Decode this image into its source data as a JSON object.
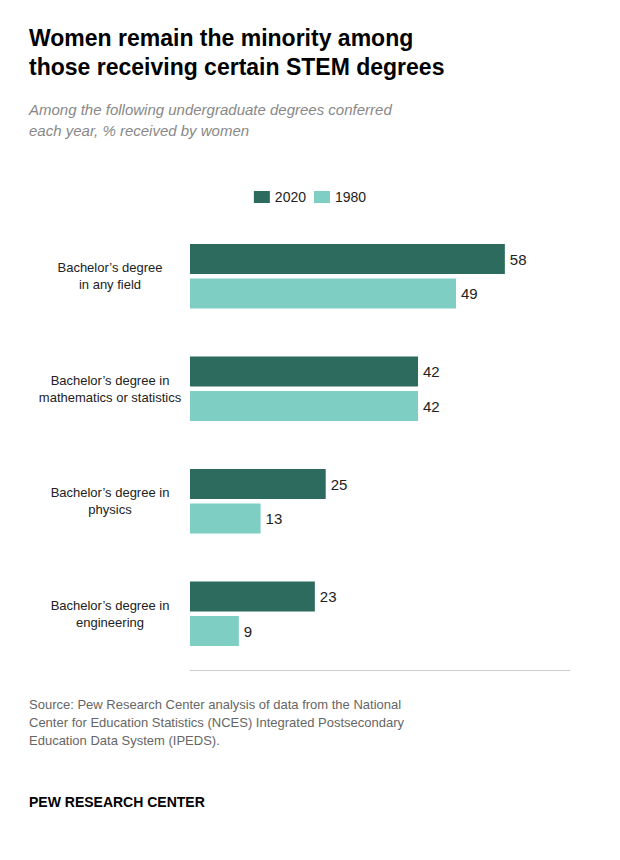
{
  "chart_data": {
    "type": "bar",
    "orientation": "horizontal",
    "title": "Women remain the minority among\nthose receiving certain STEM degrees",
    "subtitle": "Among the following undergraduate degrees conferred\neach year, % received by women",
    "categories": [
      "Bachelor’s degree\nin any field",
      "Bachelor’s degree in\nmathematics or statistics",
      "Bachelor’s degree in\nphysics",
      "Bachelor’s degree in\nengineering"
    ],
    "series": [
      {
        "name": "2020",
        "color": "#2d6b5e",
        "values": [
          58,
          42,
          25,
          23
        ]
      },
      {
        "name": "1980",
        "color": "#7ecec4",
        "values": [
          49,
          42,
          13,
          9
        ]
      }
    ],
    "xlim": [
      0,
      70
    ],
    "data_labels": true,
    "tick_labels": false,
    "grid": false,
    "legend": "top",
    "annotations": [
      "Source: Pew Research Center analysis of data from the National\nCenter for Education Statistics (NCES) Integrated Postsecondary\nEducation Data System (IPEDS).",
      "PEW RESEARCH CENTER"
    ]
  }
}
